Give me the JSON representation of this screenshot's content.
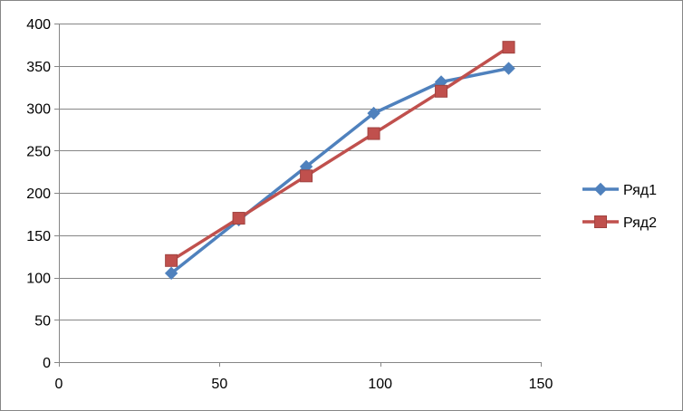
{
  "chart_data": {
    "type": "scatter",
    "xlim": [
      0,
      150
    ],
    "ylim": [
      0,
      400
    ],
    "x_ticks": [
      0,
      50,
      100,
      150
    ],
    "y_ticks": [
      0,
      50,
      100,
      150,
      200,
      250,
      300,
      350,
      400
    ],
    "grid": {
      "horizontal": true,
      "vertical": false
    },
    "legend_position": "right",
    "series": [
      {
        "name": "Ряд1",
        "marker": "diamond",
        "color": "#4F81BD",
        "x": [
          35,
          56,
          77,
          98,
          119,
          140
        ],
        "y": [
          105,
          168,
          231,
          294,
          331,
          347
        ]
      },
      {
        "name": "Ряд2",
        "marker": "square",
        "color": "#C0504D",
        "x": [
          35,
          56,
          77,
          98,
          119,
          140
        ],
        "y": [
          120,
          170,
          220,
          270,
          320,
          372
        ]
      }
    ]
  }
}
